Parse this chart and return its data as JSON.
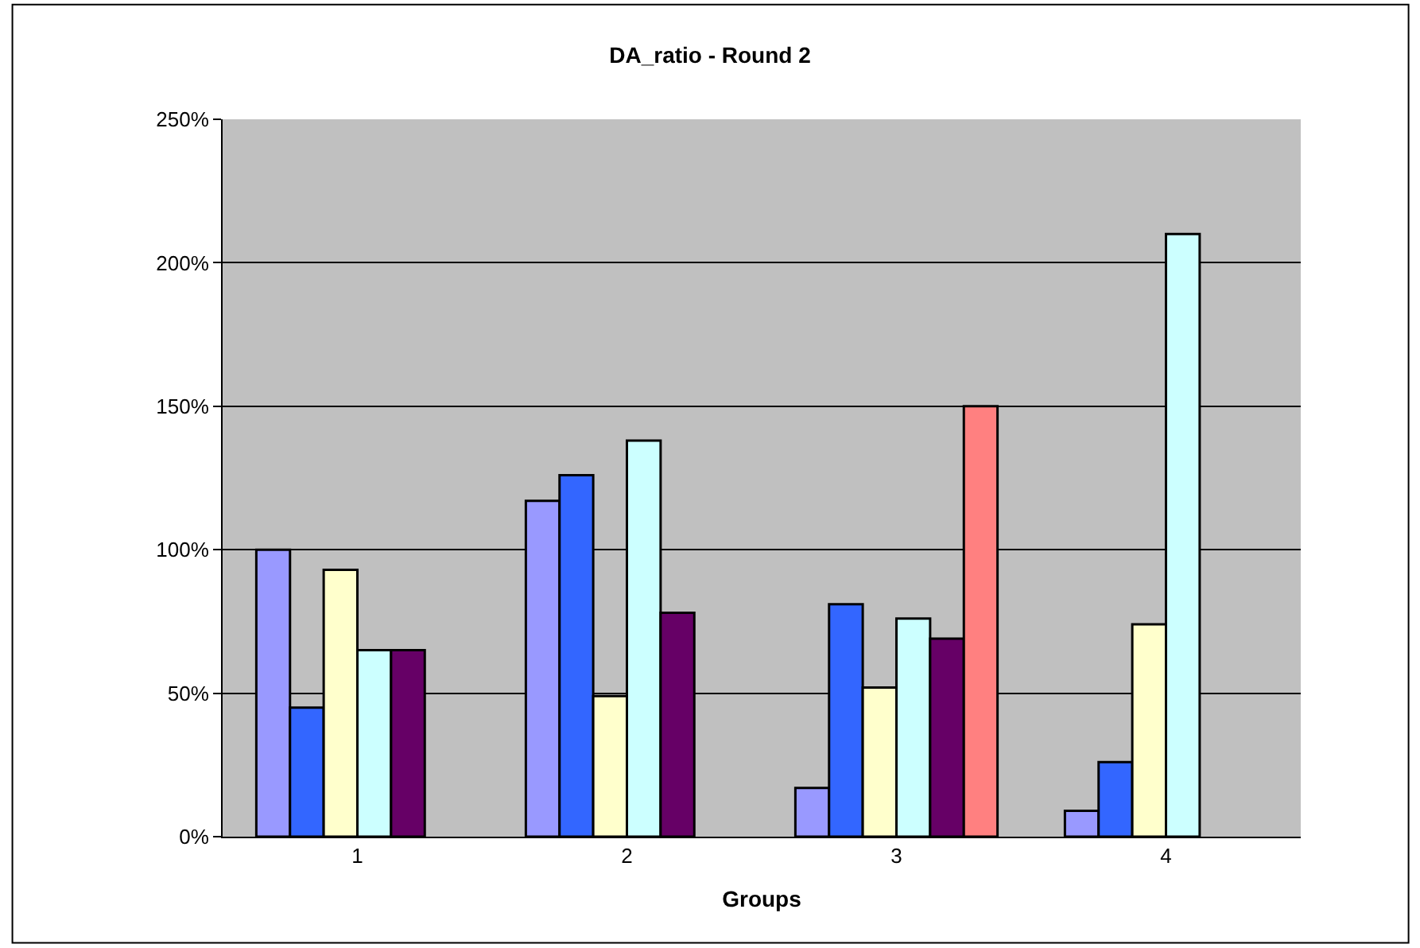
{
  "chart_data": {
    "type": "bar",
    "title": "DA_ratio - Round 2",
    "xlabel": "Groups",
    "categories": [
      "1",
      "2",
      "3",
      "4"
    ],
    "series": [
      {
        "color": "#9999ff",
        "values": [
          100,
          117,
          17,
          9
        ]
      },
      {
        "color": "#3366ff",
        "values": [
          45,
          126,
          81,
          26
        ]
      },
      {
        "color": "#ffffcc",
        "values": [
          93,
          49,
          52,
          74
        ]
      },
      {
        "color": "#ccffff",
        "values": [
          65,
          138,
          76,
          210
        ]
      },
      {
        "color": "#660066",
        "values": [
          65,
          78,
          69,
          null
        ]
      },
      {
        "color": "#ff8080",
        "values": [
          null,
          null,
          150,
          null
        ]
      }
    ],
    "ylim": [
      0,
      250
    ],
    "yticks": [
      {
        "value": 0,
        "label": "0%"
      },
      {
        "value": 50,
        "label": "50%"
      },
      {
        "value": 100,
        "label": "100%"
      },
      {
        "value": 150,
        "label": "150%"
      },
      {
        "value": 200,
        "label": "200%"
      },
      {
        "value": 250,
        "label": "250%"
      }
    ],
    "grid": "y"
  }
}
